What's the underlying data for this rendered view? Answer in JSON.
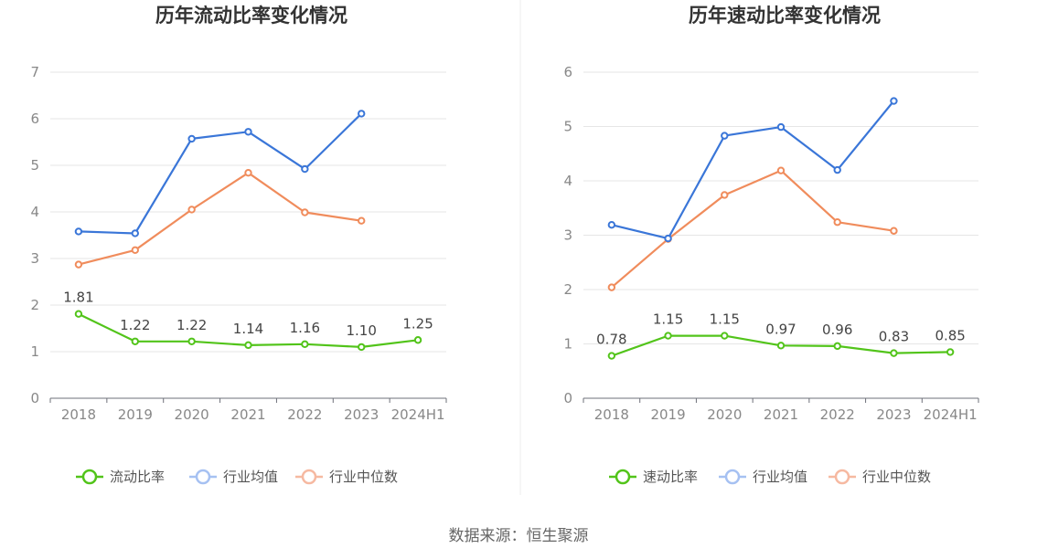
{
  "source_label": "数据来源：恒生聚源",
  "colors": {
    "primary": "#52c41a",
    "avg": "#3a76d8",
    "median": "#f08c5c",
    "avg_legend": "#a6c1f2",
    "median_legend": "#f6b9a1"
  },
  "chart_data": [
    {
      "type": "line",
      "title": "历年流动比率变化情况",
      "categories": [
        "2018",
        "2019",
        "2020",
        "2021",
        "2022",
        "2023",
        "2024H1"
      ],
      "ylim": [
        0,
        7
      ],
      "yticks": [
        0,
        1,
        2,
        3,
        4,
        5,
        6,
        7
      ],
      "grid": true,
      "legend_position": "bottom",
      "series": [
        {
          "name": "流动比率",
          "values": [
            1.81,
            1.22,
            1.22,
            1.14,
            1.16,
            1.1,
            1.25
          ],
          "labels": [
            "1.81",
            "1.22",
            "1.22",
            "1.14",
            "1.16",
            "1.10",
            "1.25"
          ]
        },
        {
          "name": "行业均值",
          "values": [
            3.58,
            3.54,
            5.57,
            5.72,
            4.92,
            6.11,
            null
          ]
        },
        {
          "name": "行业中位数",
          "values": [
            2.87,
            3.18,
            4.05,
            4.84,
            3.99,
            3.81,
            null
          ]
        }
      ]
    },
    {
      "type": "line",
      "title": "历年速动比率变化情况",
      "categories": [
        "2018",
        "2019",
        "2020",
        "2021",
        "2022",
        "2023",
        "2024H1"
      ],
      "ylim": [
        0,
        6
      ],
      "yticks": [
        0,
        1,
        2,
        3,
        4,
        5,
        6
      ],
      "grid": true,
      "legend_position": "bottom",
      "series": [
        {
          "name": "速动比率",
          "values": [
            0.78,
            1.15,
            1.15,
            0.97,
            0.96,
            0.83,
            0.85
          ],
          "labels": [
            "0.78",
            "1.15",
            "1.15",
            "0.97",
            "0.96",
            "0.83",
            "0.85"
          ]
        },
        {
          "name": "行业均值",
          "values": [
            3.19,
            2.94,
            4.83,
            4.99,
            4.2,
            5.47,
            null
          ]
        },
        {
          "name": "行业中位数",
          "values": [
            2.04,
            2.93,
            3.74,
            4.19,
            3.24,
            3.08,
            null
          ]
        }
      ]
    }
  ]
}
